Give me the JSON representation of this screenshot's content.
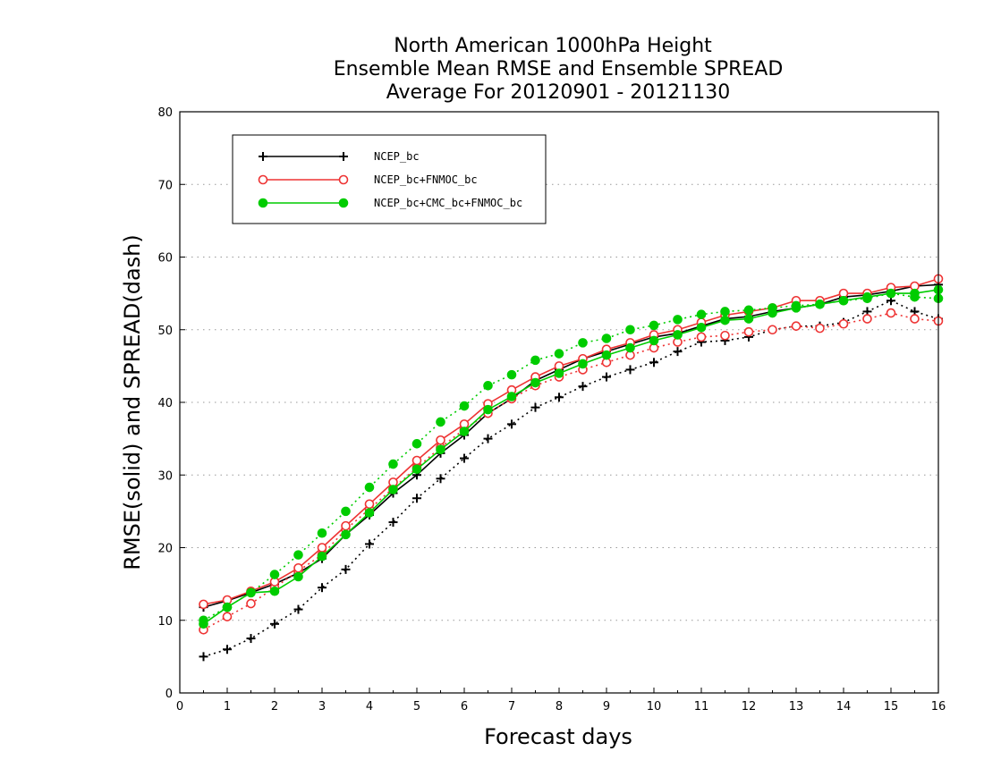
{
  "chart_data": {
    "type": "line",
    "title_lines": [
      "North American 1000hPa Height",
      "Ensemble Mean RMSE and Ensemble SPREAD",
      "Average For 20120901 - 20121130"
    ],
    "xlabel": "Forecast days",
    "ylabel": "RMSE(solid) and SPREAD(dash)",
    "xlim": [
      0,
      16
    ],
    "ylim": [
      0,
      80
    ],
    "xticks": [
      0,
      1,
      2,
      3,
      4,
      5,
      6,
      7,
      8,
      9,
      10,
      11,
      12,
      13,
      14,
      15,
      16
    ],
    "yticks": [
      0,
      10,
      20,
      30,
      40,
      50,
      60,
      70,
      80
    ],
    "grid": "horizontal dotted",
    "legend_position": "top-left",
    "x": [
      0.5,
      1,
      1.5,
      2,
      2.5,
      3,
      3.5,
      4,
      4.5,
      5,
      5.5,
      6,
      6.5,
      7,
      7.5,
      8,
      8.5,
      9,
      9.5,
      10,
      10.5,
      11,
      11.5,
      12,
      12.5,
      13,
      13.5,
      14,
      14.5,
      15,
      15.5,
      16
    ],
    "series": [
      {
        "name": "NCEP_bc",
        "color": "#000000",
        "marker": "plus",
        "rmse": [
          11.8,
          12.7,
          13.8,
          15.0,
          16.5,
          18.5,
          21.8,
          24.5,
          27.5,
          30.0,
          33.0,
          35.5,
          38.5,
          40.5,
          43.0,
          44.5,
          46.0,
          47.0,
          48.0,
          49.0,
          49.5,
          50.5,
          51.5,
          51.8,
          52.5,
          53.0,
          53.5,
          54.5,
          54.8,
          55.3,
          56.0,
          56.2
        ],
        "spread": [
          5.0,
          6.0,
          7.5,
          9.5,
          11.5,
          14.5,
          17.0,
          20.5,
          23.5,
          26.8,
          29.5,
          32.3,
          35.0,
          37.0,
          39.3,
          40.7,
          42.2,
          43.5,
          44.5,
          45.5,
          47.0,
          48.3,
          48.5,
          49.0,
          50.0,
          50.5,
          50.5,
          51.0,
          52.5,
          54.0,
          52.5,
          51.5
        ]
      },
      {
        "name": "NCEP_bc+FNMOC_bc",
        "color": "#ee3333",
        "marker": "open-circle",
        "rmse": [
          12.2,
          12.8,
          14.0,
          15.3,
          17.2,
          20.0,
          23.0,
          26.0,
          29.0,
          32.0,
          34.8,
          37.0,
          39.8,
          41.7,
          43.5,
          45.0,
          46.0,
          47.3,
          48.2,
          49.3,
          50.0,
          51.0,
          52.0,
          52.5,
          53.0,
          54.0,
          54.0,
          55.0,
          55.0,
          55.8,
          56.0,
          57.0
        ],
        "spread": [
          8.7,
          10.5,
          12.3,
          14.5,
          16.8,
          19.0,
          22.5,
          25.3,
          28.2,
          31.0,
          33.8,
          36.3,
          38.5,
          40.5,
          42.3,
          43.5,
          44.5,
          45.5,
          46.5,
          47.5,
          48.3,
          49.0,
          49.2,
          49.7,
          50.0,
          50.5,
          50.2,
          50.8,
          51.5,
          52.3,
          51.5,
          51.2
        ]
      },
      {
        "name": "NCEP_bc+CMC_bc+FNMOC_bc",
        "color": "#00cc00",
        "marker": "filled-circle",
        "rmse": [
          9.5,
          11.8,
          13.8,
          14.0,
          16.0,
          18.8,
          21.8,
          24.8,
          28.0,
          30.8,
          33.5,
          36.0,
          39.0,
          40.8,
          42.7,
          44.0,
          45.3,
          46.5,
          47.5,
          48.5,
          49.3,
          50.3,
          51.3,
          51.5,
          52.3,
          53.0,
          53.5,
          54.0,
          54.5,
          55.0,
          55.0,
          55.5
        ],
        "spread": [
          10.0,
          11.8,
          13.8,
          16.3,
          19.0,
          22.0,
          25.0,
          28.3,
          31.5,
          34.3,
          37.3,
          39.5,
          42.3,
          43.8,
          45.8,
          46.7,
          48.2,
          48.8,
          50.0,
          50.6,
          51.4,
          52.1,
          52.5,
          52.7,
          53.0,
          53.3,
          53.5,
          54.0,
          54.3,
          55.0,
          54.5,
          54.3
        ]
      }
    ]
  }
}
